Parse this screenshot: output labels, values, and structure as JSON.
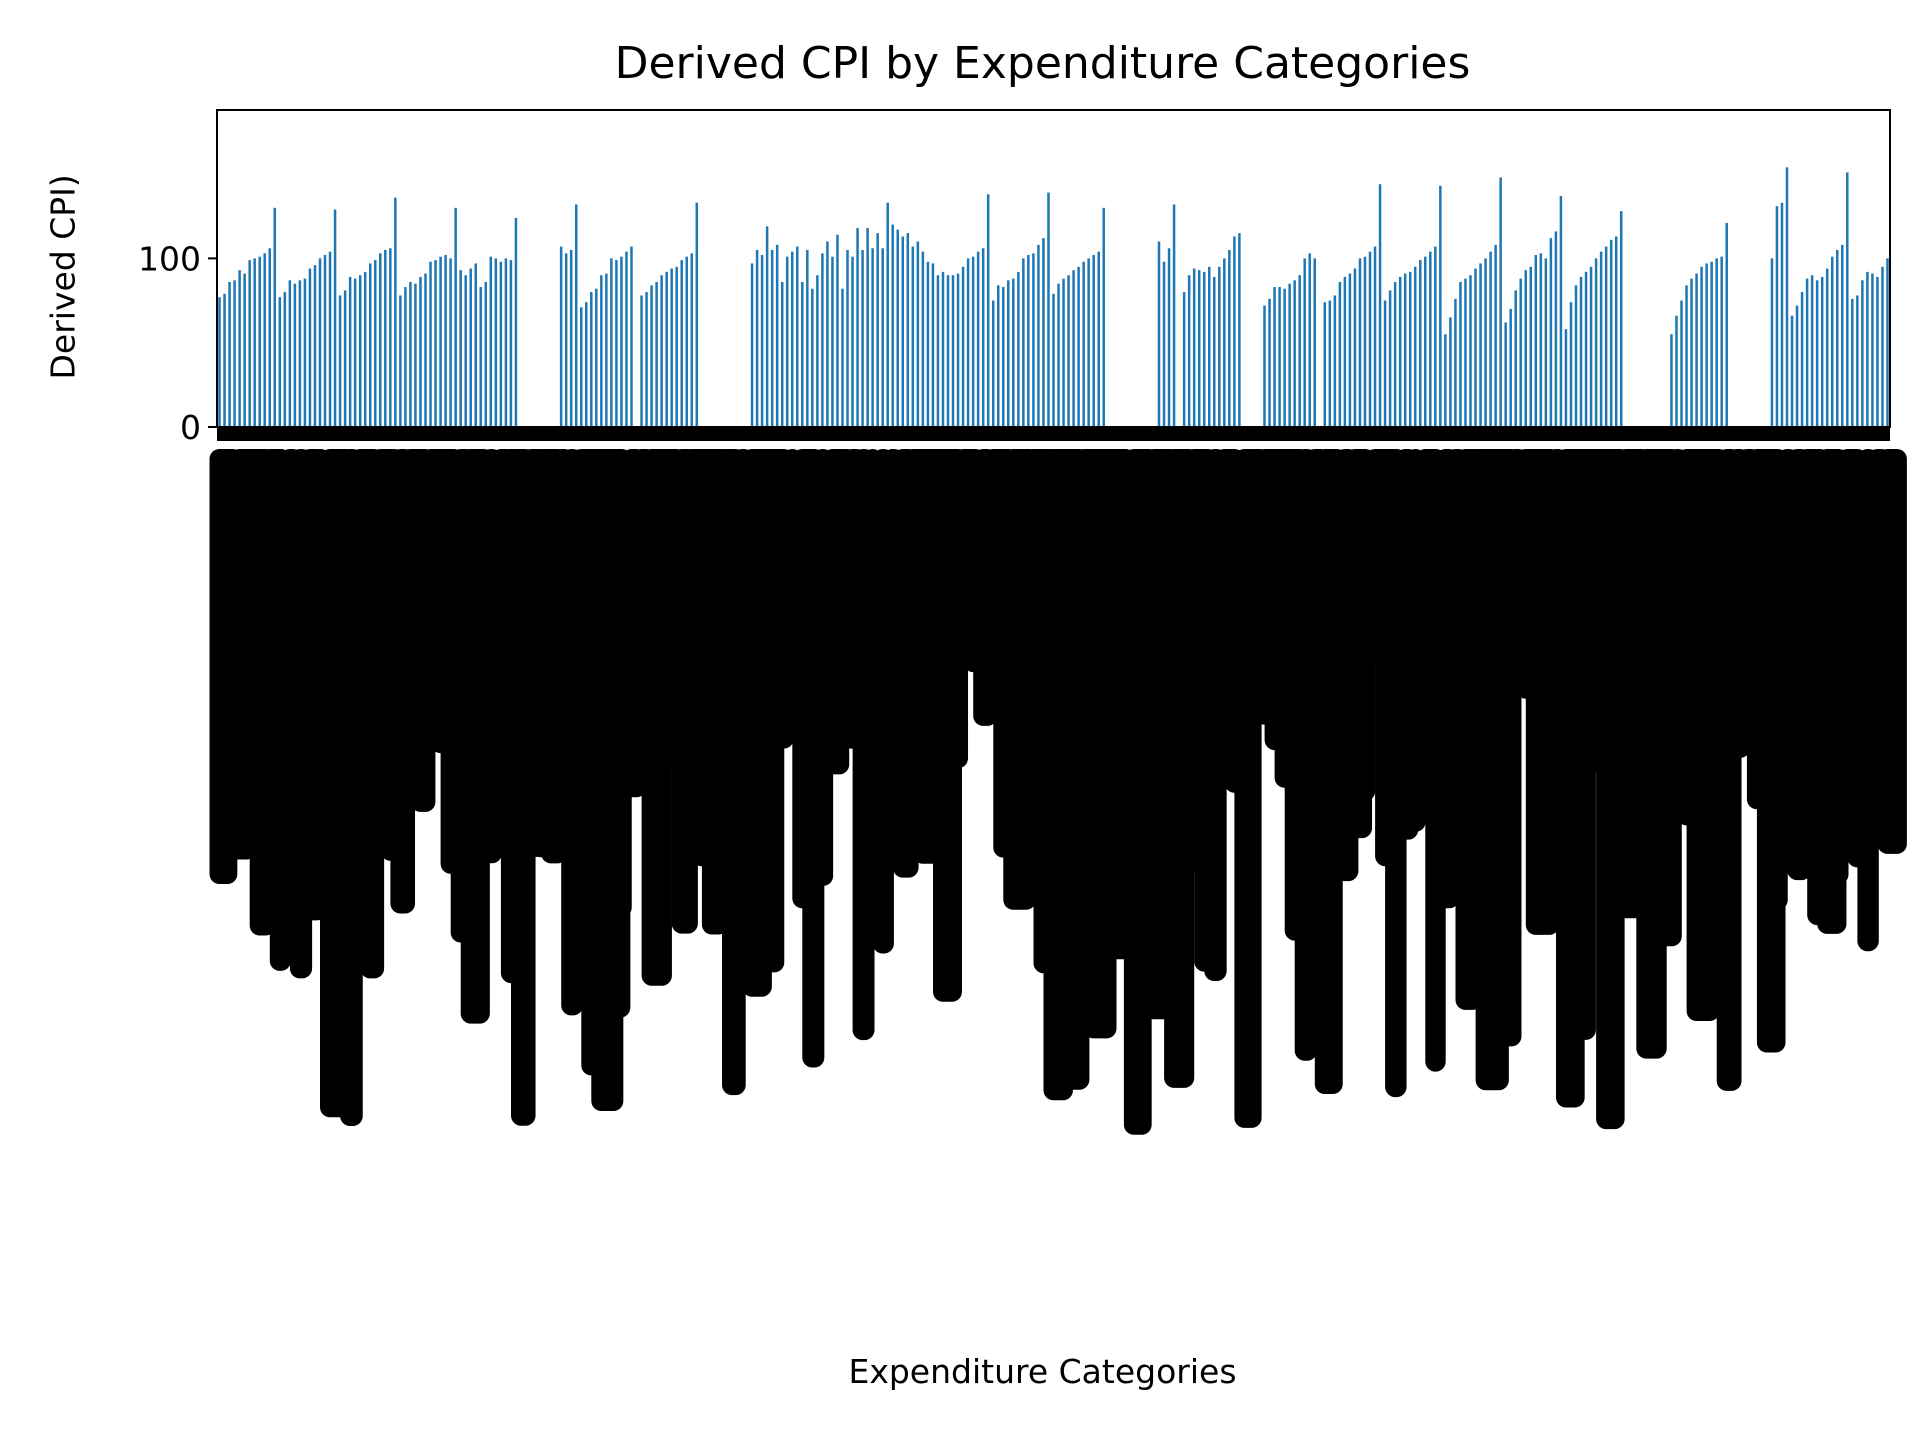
{
  "chart_data": {
    "type": "bar",
    "title": "Derived CPI by Expenditure Categories",
    "xlabel": "Expenditure Categories",
    "ylabel": "Derived CPI)",
    "ylim": [
      0,
      188
    ],
    "yticks": [
      0,
      100
    ],
    "grid": false,
    "legend": false,
    "bar_color": "#1f77b4",
    "values": [
      77,
      79,
      86,
      87,
      93,
      91,
      99,
      100,
      101,
      103,
      106,
      130,
      77,
      80,
      87,
      85,
      87,
      88,
      94,
      96,
      100,
      102,
      104,
      129,
      78,
      81,
      89,
      88,
      90,
      92,
      97,
      99,
      103,
      105,
      106,
      136,
      78,
      83,
      86,
      85,
      89,
      91,
      98,
      99,
      101,
      102,
      100,
      130,
      93,
      90,
      94,
      97,
      83,
      86,
      101,
      100,
      98,
      100,
      99,
      124,
      0,
      0,
      0,
      0,
      0,
      0,
      0,
      0,
      107,
      103,
      105,
      132,
      71,
      74,
      80,
      82,
      90,
      91,
      100,
      99,
      101,
      104,
      107,
      0,
      78,
      80,
      84,
      86,
      90,
      92,
      94,
      95,
      99,
      101,
      103,
      133,
      0,
      0,
      0,
      0,
      0,
      0,
      0,
      0,
      0,
      0,
      97,
      105,
      102,
      119,
      105,
      108,
      86,
      101,
      104,
      107,
      86,
      105,
      82,
      90,
      103,
      110,
      101,
      114,
      82,
      105,
      101,
      118,
      105,
      118,
      106,
      115,
      106,
      133,
      120,
      117,
      113,
      115,
      107,
      110,
      104,
      98,
      97,
      90,
      92,
      90,
      90,
      91,
      95,
      100,
      101,
      104,
      106,
      138,
      75,
      84,
      83,
      87,
      88,
      92,
      100,
      102,
      103,
      108,
      112,
      139,
      79,
      85,
      88,
      90,
      93,
      95,
      98,
      100,
      102,
      104,
      130,
      0,
      0,
      0,
      0,
      0,
      0,
      0,
      0,
      0,
      0,
      110,
      98,
      106,
      132,
      0,
      80,
      90,
      94,
      93,
      92,
      95,
      89,
      95,
      100,
      105,
      113,
      115,
      0,
      0,
      0,
      0,
      72,
      76,
      83,
      83,
      82,
      85,
      87,
      90,
      100,
      103,
      100,
      0,
      74,
      75,
      78,
      86,
      89,
      91,
      94,
      100,
      101,
      104,
      107,
      144,
      75,
      81,
      86,
      89,
      91,
      92,
      95,
      99,
      101,
      104,
      107,
      143,
      55,
      65,
      76,
      86,
      88,
      90,
      94,
      97,
      100,
      104,
      108,
      148,
      62,
      70,
      81,
      88,
      93,
      95,
      102,
      103,
      100,
      112,
      116,
      137,
      58,
      74,
      84,
      89,
      92,
      95,
      100,
      104,
      107,
      111,
      113,
      128,
      0,
      0,
      0,
      0,
      0,
      0,
      0,
      0,
      0,
      55,
      66,
      75,
      84,
      88,
      91,
      95,
      97,
      98,
      100,
      101,
      121,
      0,
      0,
      0,
      0,
      0,
      0,
      0,
      0,
      100,
      131,
      133,
      154,
      66,
      72,
      80,
      88,
      90,
      87,
      89,
      94,
      101,
      105,
      108,
      151,
      76,
      78,
      87,
      92,
      91,
      89,
      95,
      100
    ]
  }
}
